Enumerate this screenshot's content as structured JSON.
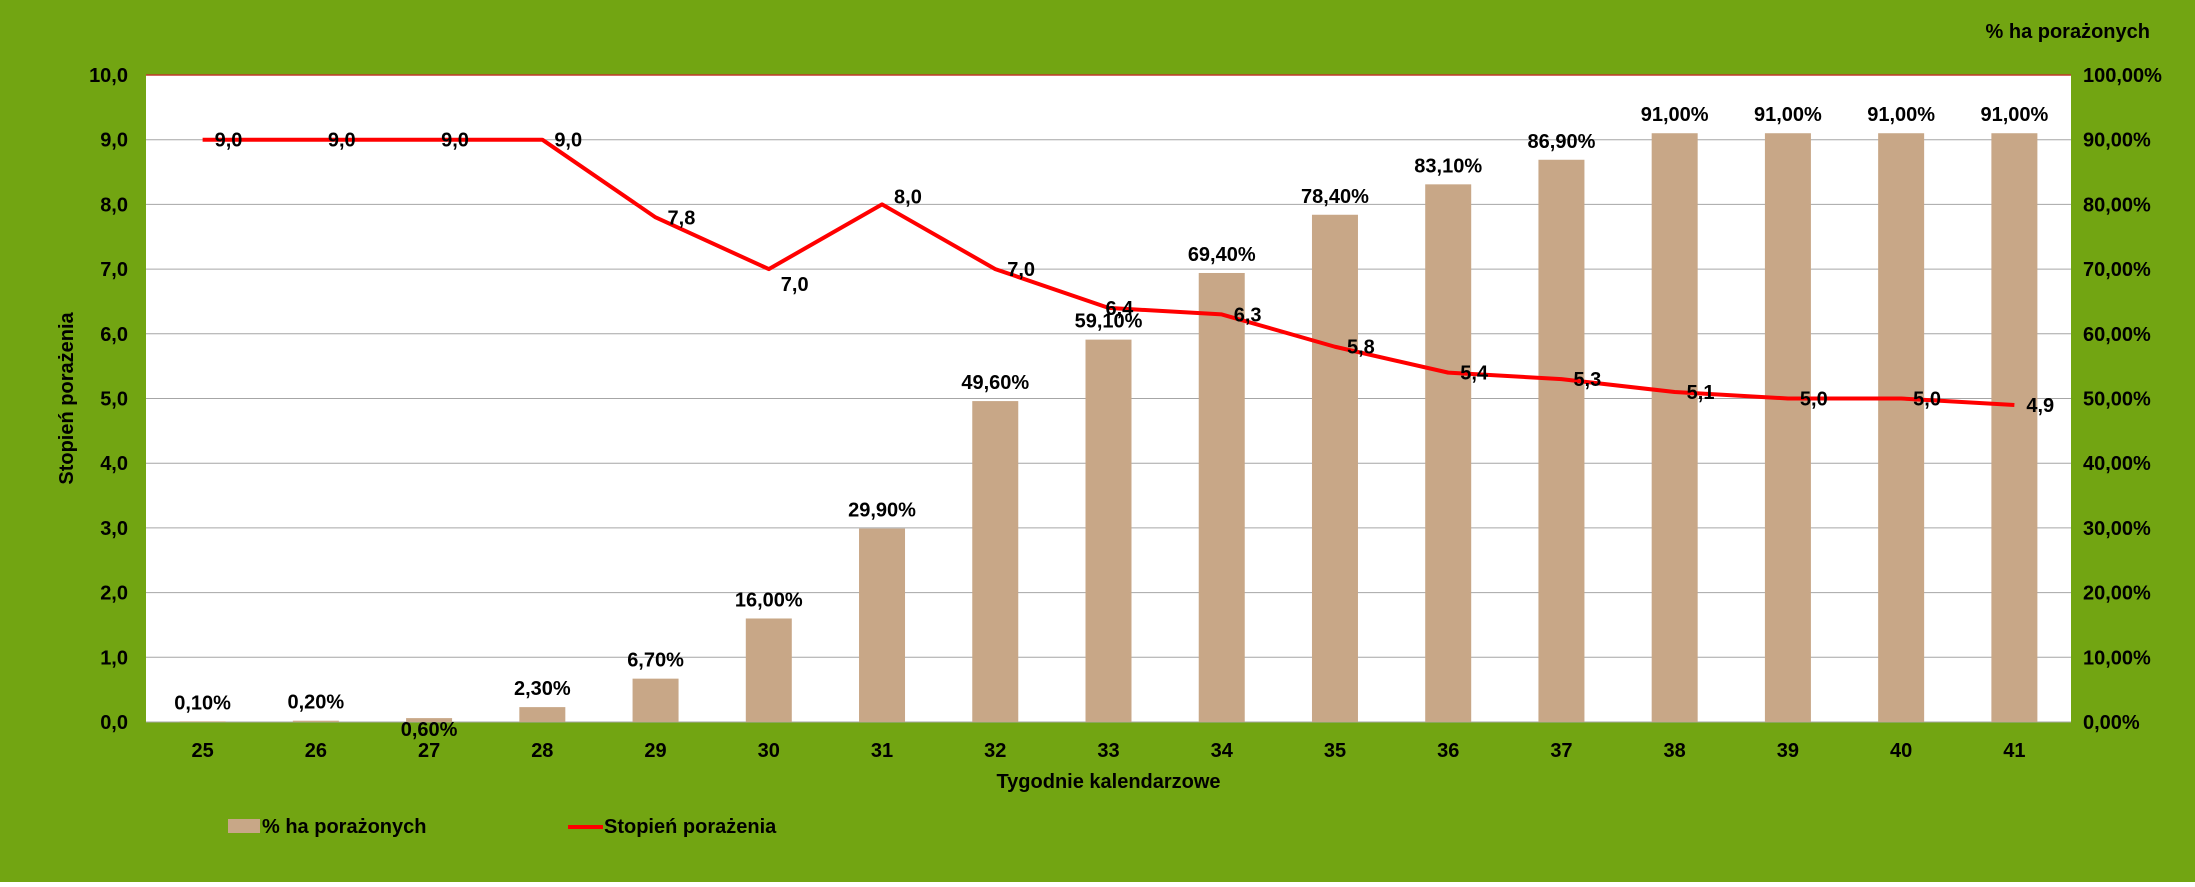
{
  "chart_data": {
    "type": "bar",
    "categories": [
      "25",
      "26",
      "27",
      "28",
      "29",
      "30",
      "31",
      "32",
      "33",
      "34",
      "35",
      "36",
      "37",
      "38",
      "39",
      "40",
      "41"
    ],
    "xlabel": "Tygodnie kalendarzowe",
    "ylabel": "Stopień porażenia",
    "y2label": "% ha porażonych",
    "ylim": [
      0,
      10
    ],
    "y2lim": [
      0,
      100
    ],
    "grid": true,
    "legend": "bottom-left",
    "y_ticks": [
      "0,0",
      "1,0",
      "2,0",
      "3,0",
      "4,0",
      "5,0",
      "6,0",
      "7,0",
      "8,0",
      "9,0",
      "10,0"
    ],
    "y2_ticks": [
      "0,00%",
      "10,00%",
      "20,00%",
      "30,00%",
      "40,00%",
      "50,00%",
      "60,00%",
      "70,00%",
      "80,00%",
      "90,00%",
      "100,00%"
    ],
    "series": [
      {
        "name": "% ha porażonych",
        "kind": "bar",
        "axis": "right",
        "color": "#c8a787",
        "values": [
          0.1,
          0.2,
          0.6,
          2.3,
          6.7,
          16.0,
          29.9,
          49.6,
          59.1,
          69.4,
          78.4,
          83.1,
          86.9,
          91.0,
          91.0,
          91.0,
          91.0
        ],
        "labels": [
          "0,10%",
          "0,20%",
          "0,60%",
          "2,30%",
          "6,70%",
          "16,00%",
          "29,90%",
          "49,60%",
          "59,10%",
          "69,40%",
          "78,40%",
          "83,10%",
          "86,90%",
          "91,00%",
          "91,00%",
          "91,00%",
          "91,00%"
        ]
      },
      {
        "name": "Stopień porażenia",
        "kind": "line",
        "axis": "left",
        "color": "#ff0000",
        "values": [
          9.0,
          9.0,
          9.0,
          9.0,
          7.8,
          7.0,
          8.0,
          7.0,
          6.4,
          6.3,
          5.8,
          5.4,
          5.3,
          5.1,
          5.0,
          5.0,
          4.9
        ],
        "labels": [
          "9,0",
          "9,0",
          "9,0",
          "9,0",
          "7,8",
          "7,0",
          "8,0",
          "7,0",
          "6,4",
          "6,3",
          "5,8",
          "5,4",
          "5,3",
          "5,1",
          "5,0",
          "5,0",
          "4,9"
        ]
      }
    ],
    "colors": {
      "background": "#72a512",
      "plot_area": "#ffffff",
      "gridline": "#a6a6a6",
      "top_border": "#c0392b"
    }
  }
}
